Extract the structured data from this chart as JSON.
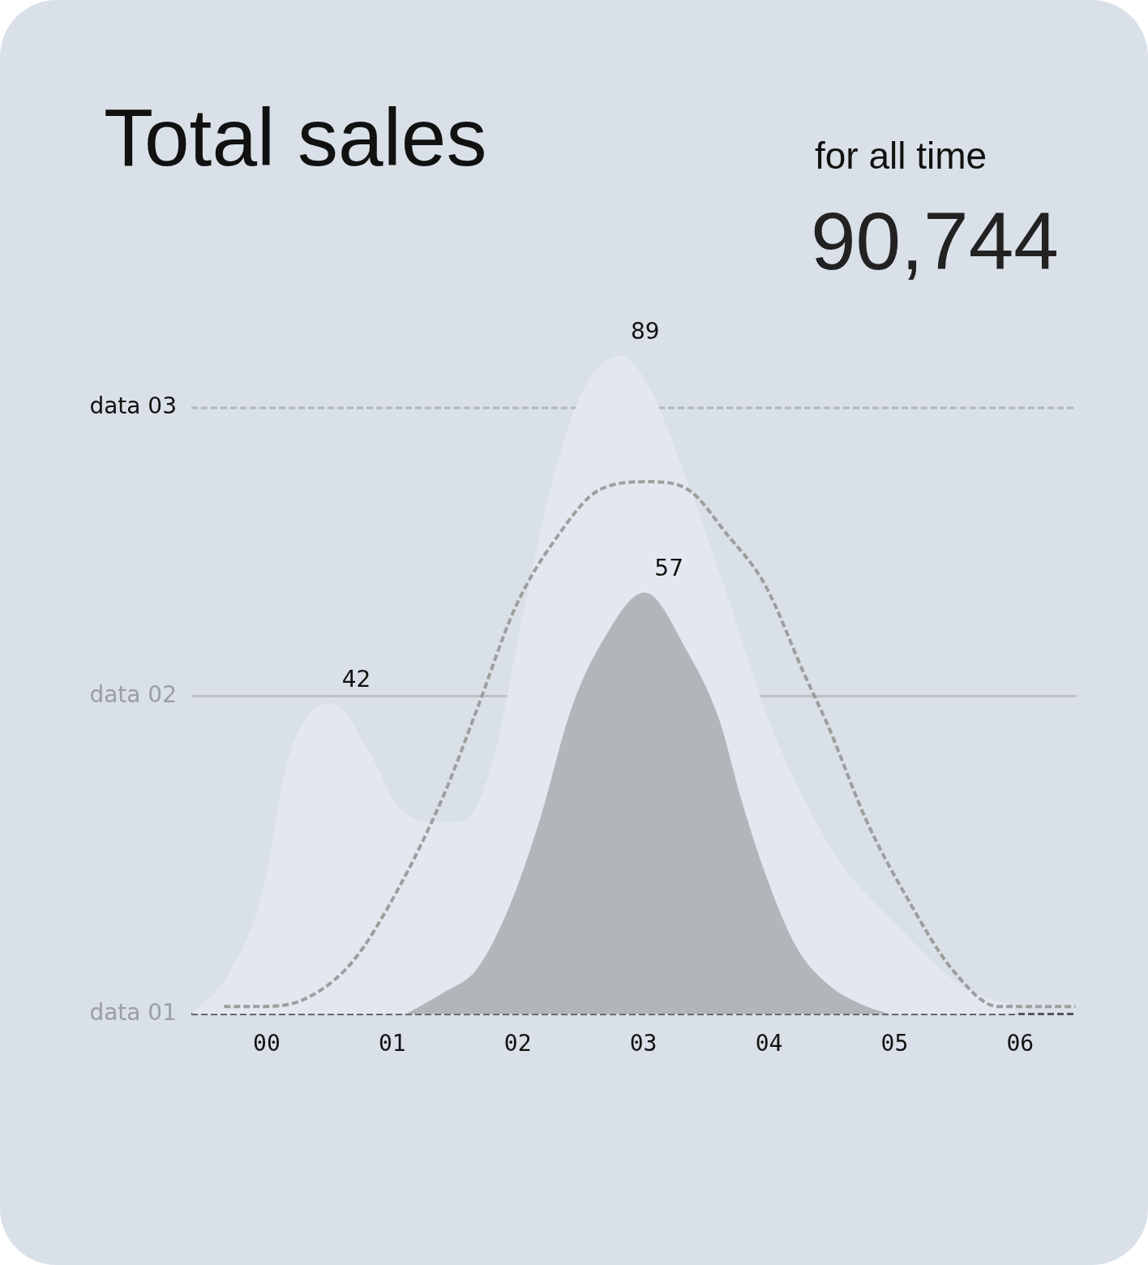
{
  "chart_data": {
    "type": "area",
    "title": "Total sales",
    "subtitle": "for all time",
    "annotations": [
      "90,744"
    ],
    "tick_labels": "x",
    "legend": false,
    "grid": false,
    "marker": "none",
    "xlim": [
      -0.6,
      6.45
    ],
    "xticks": [
      {
        "value": 0,
        "label": "00"
      },
      {
        "value": 1,
        "label": "01"
      },
      {
        "value": 2,
        "label": "02"
      },
      {
        "value": 3,
        "label": "03"
      },
      {
        "value": 4,
        "label": "04"
      },
      {
        "value": 5,
        "label": "05"
      },
      {
        "value": 6,
        "label": "06"
      }
    ],
    "ref_lines": [
      {
        "axis": "y",
        "value": 82,
        "label": "data 03",
        "color": "#b3b6bb",
        "line_style": "dashed"
      },
      {
        "axis": "y",
        "value": 43,
        "label": "data 02",
        "color": "#c0c0c0",
        "line_style": "solid"
      },
      {
        "axis": "y",
        "value": 0,
        "label": "data 01",
        "color": "#555555",
        "line_style": "dashed"
      }
    ],
    "series": [
      {
        "type": "area",
        "color": "#e3e8f0",
        "x": [
          -0.6,
          -0.32,
          -0.04,
          0.18,
          0.52,
          0.8,
          1.05,
          1.3,
          1.55,
          1.8,
          2.04,
          2.29,
          2.54,
          2.82,
          3.04,
          3.35,
          3.66,
          3.97,
          4.28,
          4.59,
          5.02,
          5.52,
          5.96
        ],
        "values": [
          0,
          5,
          16,
          35,
          42,
          36,
          28,
          26,
          26,
          34,
          54,
          73,
          85,
          89,
          85,
          72,
          57,
          41,
          29,
          20,
          12,
          4,
          1
        ],
        "value_labels": [
          null,
          null,
          null,
          null,
          "42",
          null,
          null,
          null,
          null,
          null,
          null,
          null,
          null,
          "89",
          null,
          null,
          null,
          null,
          null,
          null,
          null,
          null,
          null
        ]
      },
      {
        "type": "line",
        "color": "#9e9e9e",
        "line_style": "dashed",
        "x": [
          -0.34,
          -0.07,
          0.3,
          0.68,
          1.05,
          1.42,
          1.67,
          1.98,
          2.29,
          2.66,
          3.04,
          3.35,
          3.66,
          3.97,
          4.28,
          4.47,
          4.78,
          5.09,
          5.46,
          5.83,
          6.14,
          6.44
        ],
        "values": [
          1,
          1,
          2,
          7,
          17,
          30,
          41,
          55,
          64,
          71,
          72,
          71,
          65,
          58,
          46,
          39,
          26,
          16,
          6,
          1,
          1,
          1
        ]
      },
      {
        "type": "area",
        "color": "#a2a5aa",
        "x": [
          1.11,
          1.42,
          1.67,
          1.92,
          2.17,
          2.42,
          2.66,
          3.01,
          3.35,
          3.6,
          3.78,
          3.97,
          4.22,
          4.47,
          4.78,
          4.96
        ],
        "values": [
          0,
          3,
          6,
          14,
          26,
          41,
          50,
          57,
          49,
          40,
          29,
          19,
          9,
          4,
          1,
          0
        ],
        "value_labels": [
          null,
          null,
          null,
          null,
          null,
          null,
          null,
          "57",
          null,
          null,
          null,
          null,
          null,
          null,
          null,
          null
        ]
      }
    ]
  }
}
